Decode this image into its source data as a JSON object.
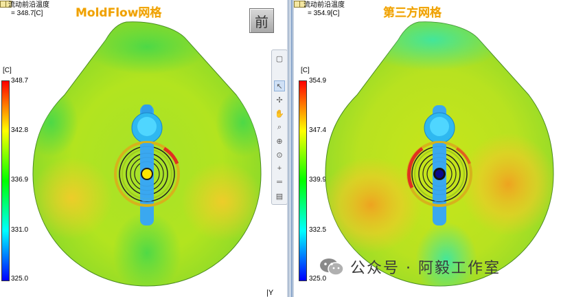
{
  "left": {
    "result_name": "流动前沿温度",
    "result_value": "= 348.7[C]",
    "mesh_title": "MoldFlow网格",
    "unit": "[C]",
    "ticks": [
      "348.7",
      "342.8",
      "336.9",
      "331.0",
      "325.0"
    ]
  },
  "right": {
    "result_name": "流动前沿温度",
    "result_value": "= 354.9[C]",
    "mesh_title": "第三方网格",
    "unit": "[C]",
    "ticks": [
      "354.9",
      "347.4",
      "339.9",
      "332.5",
      "325.0"
    ]
  },
  "view_button": {
    "label": "前"
  },
  "axis_label": "|Y",
  "watermark": {
    "text": "公众号 · 阿毅工作室"
  },
  "toolbar": {
    "tools": [
      "view-cube-icon",
      "pointer-icon",
      "rotate-icon",
      "pan-icon",
      "zoom-icon",
      "zoom-window-icon",
      "zoom-fit-icon",
      "center-icon",
      "measure-icon",
      "print-icon"
    ]
  },
  "colors": {
    "title_accent": "#f0a000",
    "gate_left": "#ffe600",
    "gate_right": "#0a0a8a"
  }
}
